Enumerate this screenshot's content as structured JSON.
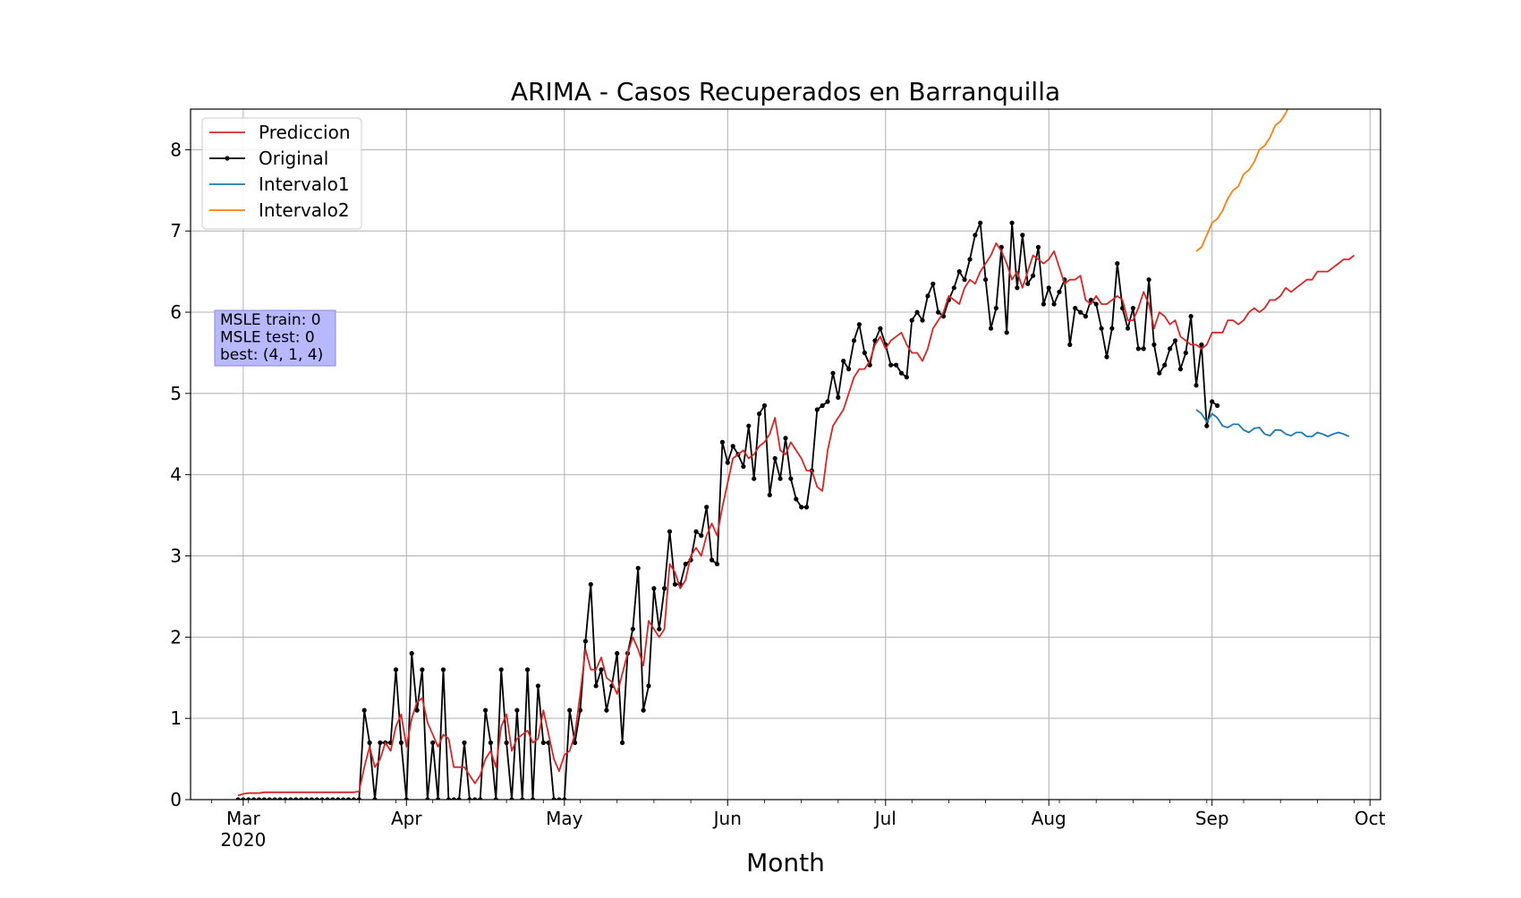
{
  "chart_data": {
    "type": "line",
    "title": "ARIMA - Casos Recuperados en Barranquilla",
    "xlabel": "Month",
    "ylabel": "",
    "ylim": [
      0,
      8.5
    ],
    "yticks": [
      0,
      1,
      2,
      3,
      4,
      5,
      6,
      7,
      8
    ],
    "xlim": [
      "2020-02-20",
      "2020-10-03"
    ],
    "xticks": [
      {
        "date": "2020-03-01",
        "label": "Mar",
        "sublabel": "2020"
      },
      {
        "date": "2020-04-01",
        "label": "Apr"
      },
      {
        "date": "2020-05-01",
        "label": "May"
      },
      {
        "date": "2020-06-01",
        "label": "Jun"
      },
      {
        "date": "2020-07-01",
        "label": "Jul"
      },
      {
        "date": "2020-08-01",
        "label": "Aug"
      },
      {
        "date": "2020-09-01",
        "label": "Sep"
      },
      {
        "date": "2020-10-01",
        "label": "Oct"
      }
    ],
    "grid": true,
    "legend_position": "top-left",
    "colors": {
      "prediccion": "#d62728",
      "original": "#000000",
      "intervalo1": "#1f77b4",
      "intervalo2": "#ff7f0e",
      "annotation_bg": "#b8b8ff"
    },
    "series": [
      {
        "name": "Prediccion",
        "key": "prediccion",
        "start": "2020-02-29",
        "values": [
          0.05,
          0.07,
          0.08,
          0.08,
          0.08,
          0.09,
          0.09,
          0.09,
          0.09,
          0.09,
          0.09,
          0.09,
          0.09,
          0.09,
          0.09,
          0.09,
          0.09,
          0.09,
          0.09,
          0.09,
          0.09,
          0.09,
          0.09,
          0.1,
          0.4,
          0.65,
          0.4,
          0.5,
          0.7,
          0.6,
          0.9,
          1.05,
          0.65,
          1.0,
          1.2,
          1.25,
          0.95,
          0.8,
          0.65,
          0.8,
          0.75,
          0.4,
          0.4,
          0.4,
          0.3,
          0.2,
          0.3,
          0.5,
          0.6,
          0.4,
          0.9,
          1.05,
          0.6,
          0.75,
          0.8,
          0.85,
          0.7,
          0.75,
          1.1,
          0.8,
          0.5,
          0.35,
          0.55,
          0.6,
          0.8,
          1.3,
          1.85,
          1.6,
          1.6,
          1.75,
          1.5,
          1.45,
          1.3,
          1.55,
          1.8,
          2.0,
          1.85,
          1.65,
          2.2,
          2.1,
          2.0,
          2.1,
          2.9,
          2.8,
          2.6,
          2.7,
          3.0,
          3.1,
          3.0,
          3.25,
          3.4,
          3.25,
          3.6,
          3.9,
          4.2,
          4.25,
          4.3,
          4.2,
          4.25,
          4.35,
          4.4,
          4.5,
          4.7,
          4.3,
          4.25,
          4.4,
          4.3,
          4.2,
          4.05,
          4.05,
          3.85,
          3.8,
          4.3,
          4.6,
          4.7,
          4.8,
          5.0,
          5.2,
          5.3,
          5.3,
          5.4,
          5.6,
          5.7,
          5.55,
          5.65,
          5.7,
          5.75,
          5.6,
          5.5,
          5.5,
          5.4,
          5.55,
          5.8,
          5.9,
          6.0,
          6.2,
          6.15,
          6.1,
          6.3,
          6.4,
          6.35,
          6.5,
          6.6,
          6.7,
          6.85,
          6.75,
          6.6,
          6.4,
          6.5,
          6.3,
          6.5,
          6.7,
          6.65,
          6.6,
          6.65,
          6.75,
          6.55,
          6.35,
          6.4,
          6.4,
          6.45,
          6.15,
          6.1,
          6.2,
          6.1,
          6.1,
          6.15,
          6.2,
          6.15,
          5.9,
          5.9,
          6.05,
          6.25,
          6.1,
          5.8,
          6.0,
          5.95,
          5.85,
          5.9,
          5.7,
          5.65,
          5.6,
          5.6,
          5.55,
          5.6,
          5.75,
          5.75,
          5.75,
          5.9,
          5.9,
          5.85,
          5.9,
          6.0,
          6.05,
          6.0,
          6.05,
          6.15,
          6.15,
          6.2,
          6.3,
          6.25,
          6.3,
          6.35,
          6.4,
          6.4,
          6.5,
          6.5,
          6.5,
          6.55,
          6.6,
          6.65,
          6.65,
          6.7
        ]
      },
      {
        "name": "Original",
        "key": "original",
        "start": "2020-02-29",
        "values": [
          0,
          0,
          0,
          0,
          0,
          0,
          0,
          0,
          0,
          0,
          0,
          0,
          0,
          0,
          0,
          0,
          0,
          0,
          0,
          0,
          0,
          0,
          0,
          0,
          1.1,
          0.7,
          0,
          0.7,
          0.7,
          0.7,
          1.6,
          0.7,
          0,
          1.8,
          1.1,
          1.6,
          0,
          0.7,
          0,
          1.6,
          0,
          0,
          0,
          0.7,
          0,
          0,
          0,
          1.1,
          0.7,
          0,
          1.6,
          0.7,
          0,
          1.1,
          0,
          1.6,
          0,
          1.4,
          0.7,
          0.7,
          0,
          0,
          0,
          1.1,
          0.7,
          1.1,
          1.95,
          2.65,
          1.4,
          1.6,
          1.1,
          1.4,
          1.8,
          0.7,
          1.8,
          2.1,
          2.85,
          1.1,
          1.4,
          2.6,
          2.1,
          2.6,
          3.3,
          2.65,
          2.65,
          2.9,
          2.95,
          3.3,
          3.25,
          3.6,
          2.95,
          2.9,
          4.4,
          4.15,
          4.35,
          4.25,
          4.1,
          4.6,
          3.95,
          4.75,
          4.85,
          3.75,
          4.2,
          3.95,
          4.45,
          3.95,
          3.7,
          3.6,
          3.6,
          4.05,
          4.8,
          4.85,
          4.9,
          5.25,
          4.95,
          5.4,
          5.3,
          5.65,
          5.85,
          5.5,
          5.35,
          5.65,
          5.8,
          5.6,
          5.35,
          5.35,
          5.25,
          5.2,
          5.9,
          6.0,
          5.9,
          6.2,
          6.35,
          6.0,
          5.95,
          6.15,
          6.3,
          6.5,
          6.4,
          6.65,
          6.95,
          7.1,
          6.4,
          5.8,
          6.05,
          6.8,
          5.75,
          7.1,
          6.3,
          6.95,
          6.35,
          6.45,
          6.8,
          6.1,
          6.3,
          6.1,
          6.25,
          6.4,
          5.6,
          6.05,
          6.0,
          5.95,
          6.15,
          6.1,
          5.8,
          5.45,
          5.8,
          6.6,
          6.05,
          5.8,
          6.05,
          5.55,
          5.55,
          6.4,
          5.6,
          5.25,
          5.35,
          5.55,
          5.65,
          5.3,
          5.5,
          5.95,
          5.1,
          5.6,
          4.6,
          4.9,
          4.85
        ]
      },
      {
        "name": "Intervalo1",
        "key": "intervalo1",
        "start": "2020-08-29",
        "values": [
          4.8,
          4.75,
          4.65,
          4.75,
          4.7,
          4.6,
          4.58,
          4.62,
          4.62,
          4.55,
          4.52,
          4.57,
          4.58,
          4.5,
          4.48,
          4.55,
          4.55,
          4.5,
          4.48,
          4.52,
          4.52,
          4.47,
          4.47,
          4.52,
          4.5,
          4.47,
          4.5,
          4.52,
          4.5,
          4.47
        ]
      },
      {
        "name": "Intervalo2",
        "key": "intervalo2",
        "start": "2020-08-29",
        "values": [
          6.75,
          6.8,
          6.95,
          7.1,
          7.15,
          7.25,
          7.4,
          7.5,
          7.55,
          7.7,
          7.75,
          7.85,
          8.0,
          8.05,
          8.15,
          8.3,
          8.35,
          8.45,
          8.6
        ]
      }
    ],
    "legend": [
      {
        "label": "Prediccion",
        "key": "prediccion",
        "marker": false
      },
      {
        "label": "Original",
        "key": "original",
        "marker": true
      },
      {
        "label": "Intervalo1",
        "key": "intervalo1",
        "marker": false
      },
      {
        "label": "Intervalo2",
        "key": "intervalo2",
        "marker": false
      }
    ],
    "annotation": {
      "lines": [
        "MSLE train: 0",
        "MSLE test: 0",
        "best: (4, 1, 4)"
      ]
    }
  }
}
